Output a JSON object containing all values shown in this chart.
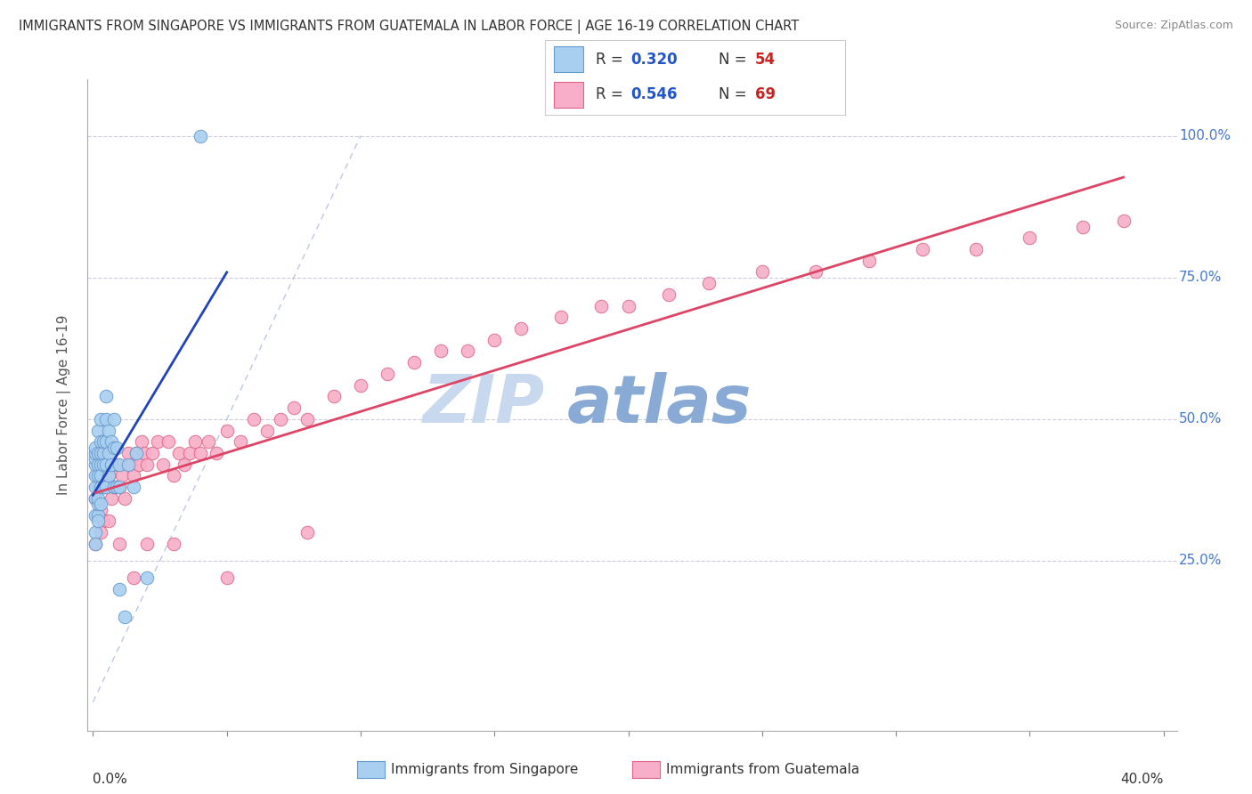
{
  "title": "IMMIGRANTS FROM SINGAPORE VS IMMIGRANTS FROM GUATEMALA IN LABOR FORCE | AGE 16-19 CORRELATION CHART",
  "source": "Source: ZipAtlas.com",
  "ylabel": "In Labor Force | Age 16-19",
  "xlim": [
    0.0,
    0.4
  ],
  "ylim": [
    -0.02,
    1.1
  ],
  "plot_ylim": [
    0.0,
    1.05
  ],
  "right_yticks": [
    0.0,
    0.25,
    0.5,
    0.75,
    1.0
  ],
  "right_yticklabels": [
    "",
    "25.0%",
    "50.0%",
    "75.0%",
    "100.0%"
  ],
  "legend_r_color": "#2255cc",
  "legend_n_color": "#cc2222",
  "singapore_color": "#a8cff0",
  "guatemala_color": "#f8aec8",
  "singapore_edge": "#6699cc",
  "guatemala_edge": "#dd6688",
  "trend_singapore_color": "#2244bb",
  "trend_guatemala_color": "#dd4466",
  "diagonal_color": "#aabbdd",
  "watermark_zip_color": "#c8d4e8",
  "watermark_atlas_color": "#88aacc",
  "singapore_x": [
    0.001,
    0.001,
    0.001,
    0.001,
    0.001,
    0.001,
    0.001,
    0.001,
    0.001,
    0.001,
    0.002,
    0.002,
    0.002,
    0.002,
    0.002,
    0.002,
    0.002,
    0.002,
    0.003,
    0.003,
    0.003,
    0.003,
    0.003,
    0.003,
    0.003,
    0.004,
    0.004,
    0.004,
    0.004,
    0.005,
    0.005,
    0.005,
    0.005,
    0.005,
    0.006,
    0.006,
    0.006,
    0.007,
    0.007,
    0.008,
    0.008,
    0.008,
    0.009,
    0.009,
    0.01,
    0.01,
    0.01,
    0.012,
    0.013,
    0.015,
    0.016,
    0.02,
    0.04
  ],
  "singapore_y": [
    0.33,
    0.36,
    0.38,
    0.4,
    0.42,
    0.43,
    0.44,
    0.45,
    0.3,
    0.28,
    0.33,
    0.35,
    0.4,
    0.42,
    0.44,
    0.48,
    0.32,
    0.36,
    0.35,
    0.38,
    0.42,
    0.46,
    0.5,
    0.4,
    0.44,
    0.38,
    0.44,
    0.46,
    0.42,
    0.42,
    0.46,
    0.5,
    0.54,
    0.38,
    0.4,
    0.44,
    0.48,
    0.46,
    0.42,
    0.5,
    0.45,
    0.38,
    0.45,
    0.38,
    0.2,
    0.38,
    0.42,
    0.15,
    0.42,
    0.38,
    0.44,
    0.22,
    1.0
  ],
  "guatemala_x": [
    0.001,
    0.002,
    0.003,
    0.004,
    0.005,
    0.006,
    0.007,
    0.008,
    0.009,
    0.01,
    0.011,
    0.012,
    0.013,
    0.014,
    0.015,
    0.016,
    0.017,
    0.018,
    0.019,
    0.02,
    0.022,
    0.024,
    0.026,
    0.028,
    0.03,
    0.032,
    0.034,
    0.036,
    0.038,
    0.04,
    0.043,
    0.046,
    0.05,
    0.055,
    0.06,
    0.065,
    0.07,
    0.075,
    0.08,
    0.09,
    0.1,
    0.11,
    0.12,
    0.13,
    0.14,
    0.15,
    0.16,
    0.175,
    0.19,
    0.2,
    0.215,
    0.23,
    0.25,
    0.27,
    0.29,
    0.31,
    0.33,
    0.35,
    0.37,
    0.385,
    0.001,
    0.003,
    0.006,
    0.01,
    0.015,
    0.02,
    0.03,
    0.05,
    0.08
  ],
  "guatemala_y": [
    0.36,
    0.38,
    0.34,
    0.32,
    0.38,
    0.4,
    0.36,
    0.38,
    0.42,
    0.38,
    0.4,
    0.36,
    0.44,
    0.42,
    0.4,
    0.44,
    0.42,
    0.46,
    0.44,
    0.42,
    0.44,
    0.46,
    0.42,
    0.46,
    0.4,
    0.44,
    0.42,
    0.44,
    0.46,
    0.44,
    0.46,
    0.44,
    0.48,
    0.46,
    0.5,
    0.48,
    0.5,
    0.52,
    0.5,
    0.54,
    0.56,
    0.58,
    0.6,
    0.62,
    0.62,
    0.64,
    0.66,
    0.68,
    0.7,
    0.7,
    0.72,
    0.74,
    0.76,
    0.76,
    0.78,
    0.8,
    0.8,
    0.82,
    0.84,
    0.85,
    0.28,
    0.3,
    0.32,
    0.28,
    0.22,
    0.28,
    0.28,
    0.22,
    0.3
  ]
}
